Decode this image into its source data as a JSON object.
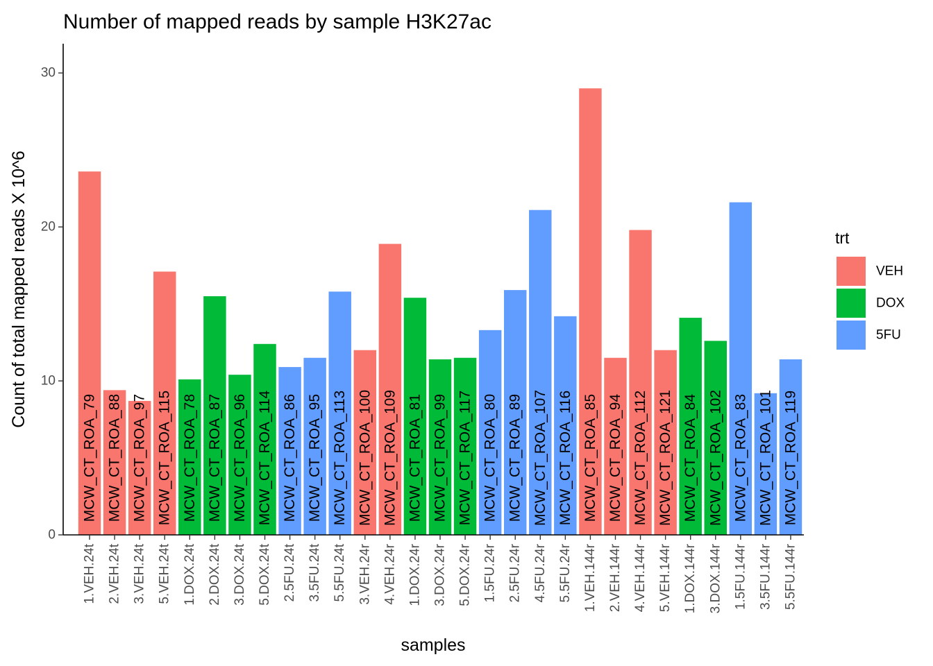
{
  "chart_data": {
    "type": "bar",
    "title": "Number of mapped reads by sample H3K27ac",
    "xlabel": "samples",
    "ylabel": "Count of total mapped reads X 10^6",
    "ylim": [
      0,
      31.9
    ],
    "yticks": [
      0,
      10,
      20,
      30
    ],
    "grid": false,
    "legend": {
      "title": "trt",
      "position": "right",
      "entries": [
        {
          "name": "VEH",
          "color": "#F8766D"
        },
        {
          "name": "DOX",
          "color": "#00BA38"
        },
        {
          "name": "5FU",
          "color": "#619CFF"
        }
      ]
    },
    "categories": [
      "1.VEH.24t",
      "2.VEH.24t",
      "3.VEH.24t",
      "5.VEH.24t",
      "1.DOX.24t",
      "2.DOX.24t",
      "3.DOX.24t",
      "5.DOX.24t",
      "2.5FU.24t",
      "3.5FU.24t",
      "5.5FU.24t",
      "3.VEH.24r",
      "4.VEH.24r",
      "1.DOX.24r",
      "3.DOX.24r",
      "5.DOX.24r",
      "1.5FU.24r",
      "2.5FU.24r",
      "4.5FU.24r",
      "5.5FU.24r",
      "1.VEH.144r",
      "2.VEH.144r",
      "4.VEH.144r",
      "5.VEH.144r",
      "1.DOX.144r",
      "3.DOX.144r",
      "1.5FU.144r",
      "3.5FU.144r",
      "5.5FU.144r"
    ],
    "values": [
      23.6,
      9.4,
      8.7,
      17.1,
      10.1,
      15.5,
      10.4,
      12.4,
      10.9,
      11.5,
      15.8,
      12.0,
      18.9,
      15.4,
      11.4,
      11.5,
      13.3,
      15.9,
      21.1,
      14.2,
      29.0,
      11.5,
      19.8,
      12.0,
      14.1,
      12.6,
      21.6,
      9.2,
      11.4
    ],
    "treatments": [
      "VEH",
      "VEH",
      "VEH",
      "VEH",
      "DOX",
      "DOX",
      "DOX",
      "DOX",
      "5FU",
      "5FU",
      "5FU",
      "VEH",
      "VEH",
      "DOX",
      "DOX",
      "DOX",
      "5FU",
      "5FU",
      "5FU",
      "5FU",
      "VEH",
      "VEH",
      "VEH",
      "VEH",
      "DOX",
      "DOX",
      "5FU",
      "5FU",
      "5FU"
    ],
    "labels": [
      "MCW_CT_ROA_79",
      "MCW_CT_ROA_88",
      "MCW_CT_ROA_97",
      "MCW_CT_ROA_115",
      "MCW_CT_ROA_78",
      "MCW_CT_ROA_87",
      "MCW_CT_ROA_96",
      "MCW_CT_ROA_114",
      "MCW_CT_ROA_86",
      "MCW_CT_ROA_95",
      "MCW_CT_ROA_113",
      "MCW_CT_ROA_100",
      "MCW_CT_ROA_109",
      "MCW_CT_ROA_81",
      "MCW_CT_ROA_99",
      "MCW_CT_ROA_117",
      "MCW_CT_ROA_80",
      "MCW_CT_ROA_89",
      "MCW_CT_ROA_107",
      "MCW_CT_ROA_116",
      "MCW_CT_ROA_85",
      "MCW_CT_ROA_94",
      "MCW_CT_ROA_112",
      "MCW_CT_ROA_121",
      "MCW_CT_ROA_84",
      "MCW_CT_ROA_102",
      "MCW_CT_ROA_83",
      "MCW_CT_ROA_101",
      "MCW_CT_ROA_119"
    ]
  }
}
